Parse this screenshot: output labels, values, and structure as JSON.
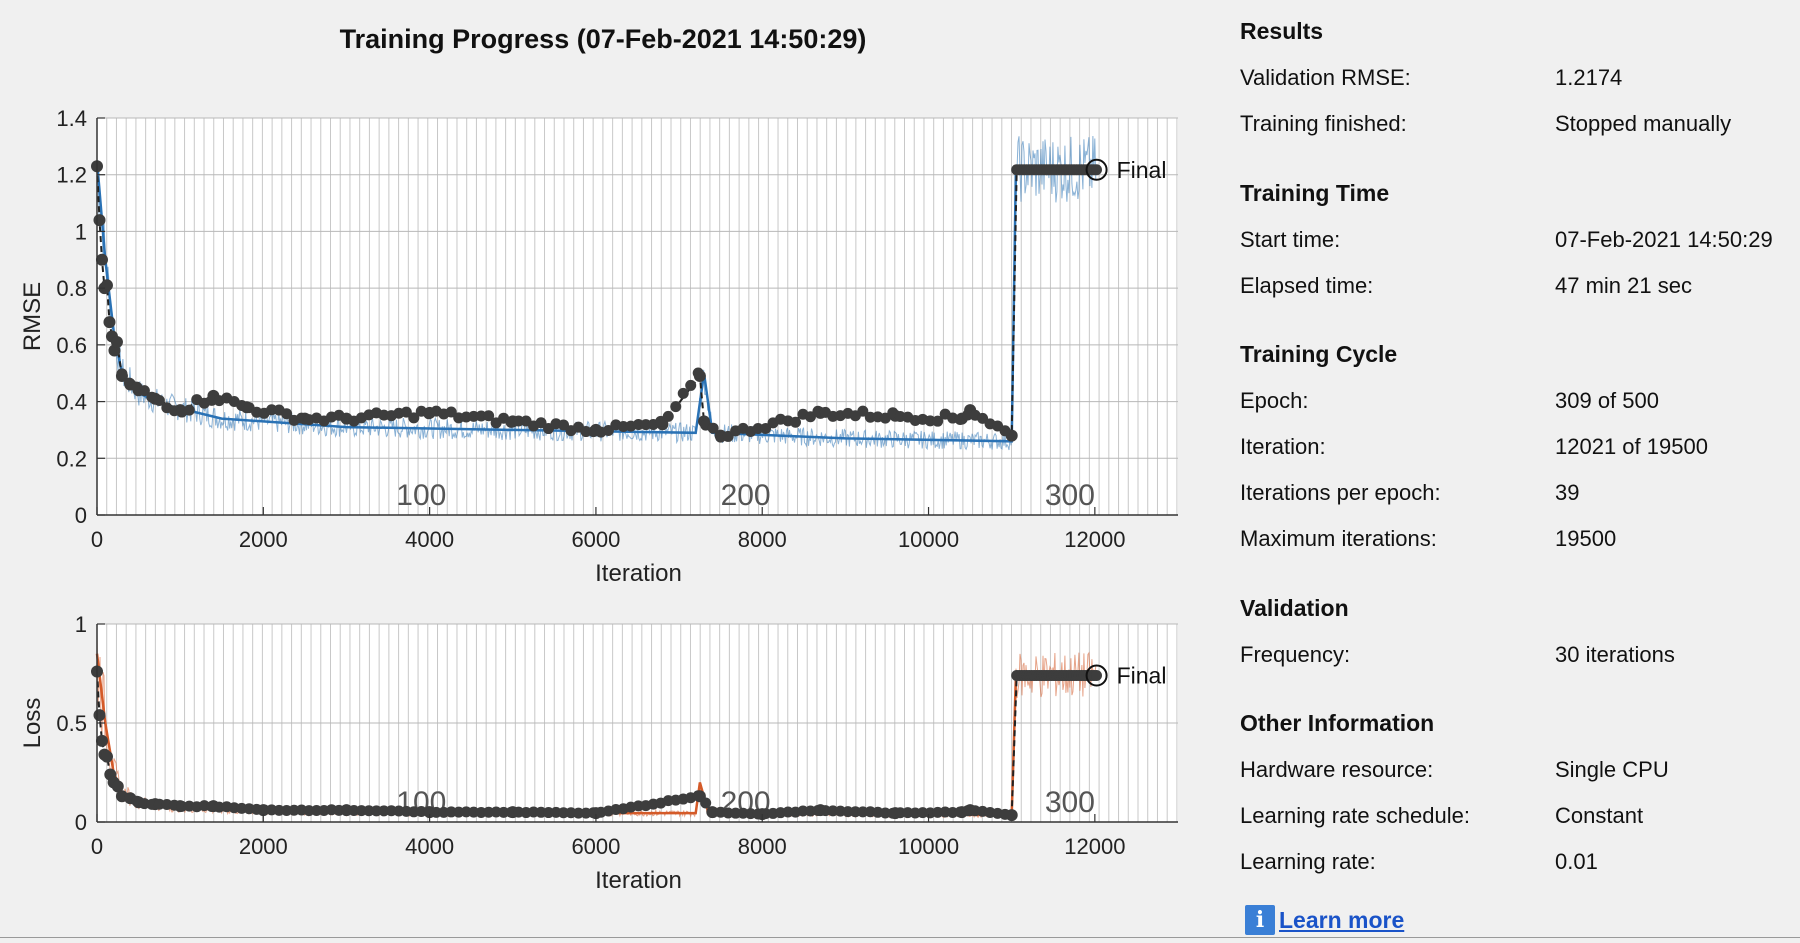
{
  "header": {
    "title": "Training Progress (07-Feb-2021 14:50:29)"
  },
  "colors": {
    "rmse_series": "#2a72b5",
    "loss_series": "#d45a28",
    "markers": "#3d3d3d",
    "grid": "#c8c8c8",
    "axes_bg": "#ffffff",
    "link": "#1a53c8",
    "info_icon_bg": "#3a7fd6"
  },
  "chart_data": [
    {
      "type": "line",
      "ylabel": "RMSE",
      "xlabel": "Iteration",
      "xlim": [
        0,
        13000
      ],
      "ylim": [
        0,
        1.4
      ],
      "xticks": [
        "0",
        "2000",
        "4000",
        "6000",
        "8000",
        "10000",
        "12000"
      ],
      "yticks": [
        "0",
        "0.2",
        "0.4",
        "0.6",
        "0.8",
        "1",
        "1.2",
        "1.4"
      ],
      "epoch_labels": [
        {
          "text": "100",
          "iteration": 3900
        },
        {
          "text": "200",
          "iteration": 7800
        },
        {
          "text": "300",
          "iteration": 11700
        }
      ],
      "final_label": "Final",
      "final_value": 1.2174,
      "final_iteration": 12021,
      "grid": true,
      "series": [
        {
          "role": "training",
          "smoothed": [
            [
              0,
              1.25
            ],
            [
              100,
              0.9
            ],
            [
              200,
              0.65
            ],
            [
              300,
              0.5
            ],
            [
              500,
              0.43
            ],
            [
              800,
              0.39
            ],
            [
              1500,
              0.34
            ],
            [
              3000,
              0.31
            ],
            [
              5000,
              0.3
            ],
            [
              7200,
              0.29
            ],
            [
              7300,
              0.5
            ],
            [
              7400,
              0.29
            ],
            [
              9000,
              0.27
            ],
            [
              11000,
              0.26
            ],
            [
              11050,
              1.22
            ],
            [
              12021,
              1.22
            ]
          ]
        },
        {
          "role": "validation",
          "points": [
            [
              0,
              1.23
            ],
            [
              30,
              1.04
            ],
            [
              60,
              0.9
            ],
            [
              90,
              0.8
            ],
            [
              120,
              0.81
            ],
            [
              150,
              0.68
            ],
            [
              180,
              0.63
            ],
            [
              210,
              0.58
            ],
            [
              240,
              0.61
            ],
            [
              300,
              0.49
            ],
            [
              400,
              0.46
            ],
            [
              500,
              0.44
            ],
            [
              700,
              0.41
            ],
            [
              1000,
              0.37
            ],
            [
              1400,
              0.42
            ],
            [
              1800,
              0.38
            ],
            [
              2500,
              0.34
            ],
            [
              3000,
              0.34
            ],
            [
              4000,
              0.36
            ],
            [
              5000,
              0.33
            ],
            [
              6000,
              0.3
            ],
            [
              6800,
              0.32
            ],
            [
              7250,
              0.49
            ],
            [
              7300,
              0.33
            ],
            [
              7500,
              0.28
            ],
            [
              8700,
              0.36
            ],
            [
              9600,
              0.35
            ],
            [
              10400,
              0.34
            ],
            [
              10500,
              0.37
            ],
            [
              11000,
              0.28
            ]
          ]
        }
      ]
    },
    {
      "type": "line",
      "ylabel": "Loss",
      "xlabel": "Iteration",
      "xlim": [
        0,
        13000
      ],
      "ylim": [
        0,
        1
      ],
      "xticks": [
        "0",
        "2000",
        "4000",
        "6000",
        "8000",
        "10000",
        "12000"
      ],
      "yticks": [
        "0",
        "0.5",
        "1"
      ],
      "epoch_labels": [
        {
          "text": "100",
          "iteration": 3900
        },
        {
          "text": "200",
          "iteration": 7800
        },
        {
          "text": "300",
          "iteration": 11700
        }
      ],
      "final_label": "Final",
      "final_value": 0.74,
      "final_iteration": 12021,
      "grid": true,
      "series": [
        {
          "role": "training",
          "smoothed": [
            [
              0,
              0.85
            ],
            [
              100,
              0.5
            ],
            [
              200,
              0.25
            ],
            [
              300,
              0.15
            ],
            [
              500,
              0.1
            ],
            [
              800,
              0.08
            ],
            [
              1500,
              0.06
            ],
            [
              3000,
              0.05
            ],
            [
              5000,
              0.045
            ],
            [
              7200,
              0.045
            ],
            [
              7250,
              0.2
            ],
            [
              7350,
              0.05
            ],
            [
              9000,
              0.04
            ],
            [
              11000,
              0.035
            ],
            [
              11050,
              0.74
            ],
            [
              12021,
              0.74
            ]
          ]
        },
        {
          "role": "validation",
          "points": [
            [
              0,
              0.76
            ],
            [
              30,
              0.54
            ],
            [
              60,
              0.41
            ],
            [
              90,
              0.34
            ],
            [
              120,
              0.33
            ],
            [
              160,
              0.24
            ],
            [
              200,
              0.2
            ],
            [
              250,
              0.18
            ],
            [
              300,
              0.13
            ],
            [
              400,
              0.12
            ],
            [
              500,
              0.1
            ],
            [
              700,
              0.09
            ],
            [
              1000,
              0.08
            ],
            [
              1400,
              0.08
            ],
            [
              2000,
              0.06
            ],
            [
              3000,
              0.06
            ],
            [
              4000,
              0.05
            ],
            [
              5000,
              0.05
            ],
            [
              6000,
              0.045
            ],
            [
              7250,
              0.13
            ],
            [
              7400,
              0.05
            ],
            [
              8000,
              0.04
            ],
            [
              8700,
              0.06
            ],
            [
              9600,
              0.045
            ],
            [
              10400,
              0.05
            ],
            [
              10500,
              0.06
            ],
            [
              11000,
              0.035
            ]
          ]
        }
      ]
    }
  ],
  "panel": {
    "results": {
      "title": "Results",
      "rows": [
        {
          "label": "Validation RMSE:",
          "value": "1.2174"
        },
        {
          "label": "Training finished:",
          "value": "Stopped manually"
        }
      ]
    },
    "time": {
      "title": "Training Time",
      "rows": [
        {
          "label": "Start time:",
          "value": "07-Feb-2021 14:50:29"
        },
        {
          "label": "Elapsed time:",
          "value": "47 min 21 sec"
        }
      ]
    },
    "cycle": {
      "title": "Training Cycle",
      "rows": [
        {
          "label": "Epoch:",
          "value": "309 of 500"
        },
        {
          "label": "Iteration:",
          "value": "12021 of 19500"
        },
        {
          "label": "Iterations per epoch:",
          "value": "39"
        },
        {
          "label": "Maximum iterations:",
          "value": "19500"
        }
      ]
    },
    "validation": {
      "title": "Validation",
      "rows": [
        {
          "label": "Frequency:",
          "value": "30 iterations"
        }
      ]
    },
    "other": {
      "title": "Other Information",
      "rows": [
        {
          "label": "Hardware resource:",
          "value": "Single CPU"
        },
        {
          "label": "Learning rate schedule:",
          "value": "Constant"
        },
        {
          "label": "Learning rate:",
          "value": "0.01"
        }
      ]
    },
    "learn_more": {
      "label": "Learn more",
      "icon": "info-icon",
      "icon_glyph": "i"
    }
  }
}
